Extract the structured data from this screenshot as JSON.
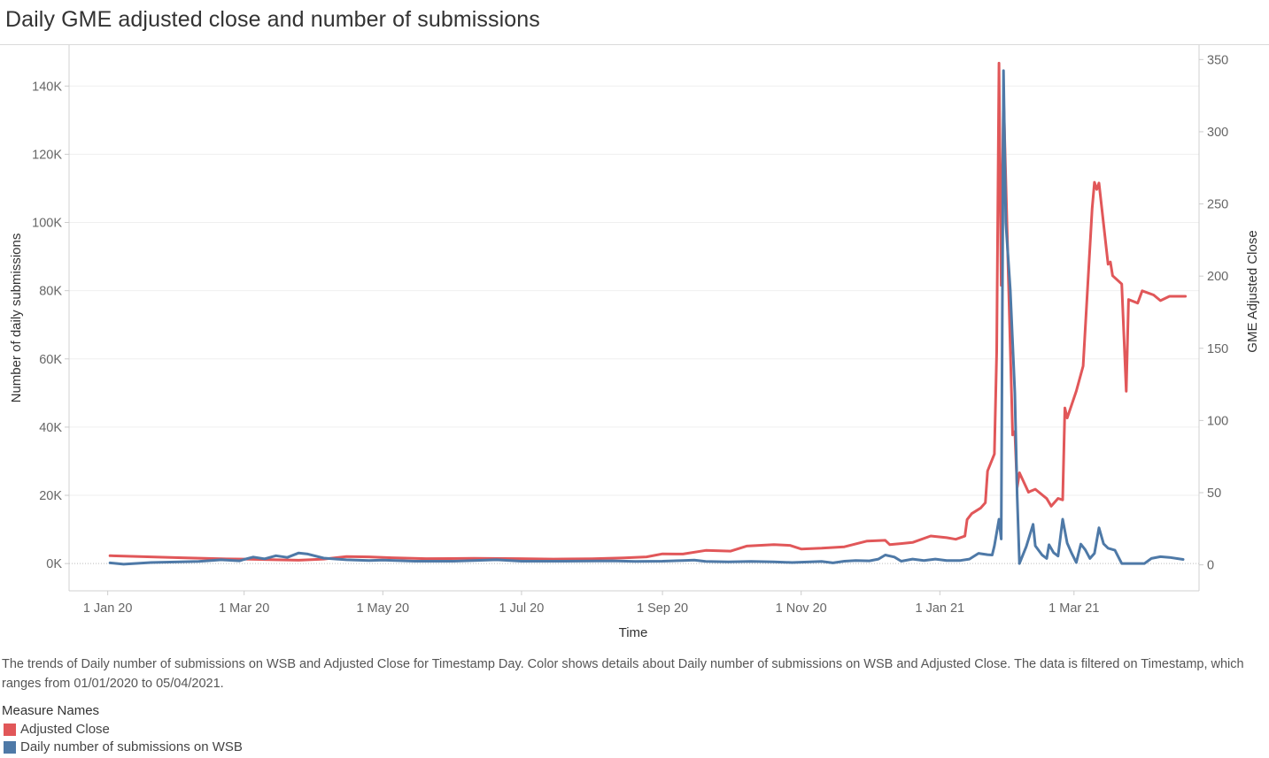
{
  "title": "Daily GME adjusted close and number of submissions",
  "description": "The trends of Daily number of submissions on WSB and Adjusted Close for Timestamp Day.  Color shows details about Daily number of submissions on WSB and Adjusted Close. The data is filtered on Timestamp, which ranges from 01/01/2020 to 05/04/2021.",
  "legend": {
    "title": "Measure Names",
    "items": [
      {
        "label": "Adjusted Close",
        "color": "#e15759"
      },
      {
        "label": "Daily number of submissions on WSB",
        "color": "#4e79a7"
      }
    ]
  },
  "chart_data": {
    "type": "line",
    "title": "Daily GME adjusted close and number of submissions",
    "xlabel": "Time",
    "ylabel_left": "Number of daily submissions",
    "ylabel_right": "GME Adjusted Close",
    "x_ticks": [
      "1 Jan 20",
      "1 Mar 20",
      "1 May 20",
      "1 Jul 20",
      "1 Sep 20",
      "1 Nov 20",
      "1 Jan 21",
      "1 Mar 21"
    ],
    "x_tick_dates": [
      "2020-01-01",
      "2020-03-01",
      "2020-05-01",
      "2020-07-01",
      "2020-09-01",
      "2020-11-01",
      "2021-01-01",
      "2021-03-01"
    ],
    "xlim": [
      "2019-12-15",
      "2021-04-25"
    ],
    "y_left_ticks": [
      "0K",
      "20K",
      "40K",
      "60K",
      "80K",
      "100K",
      "120K",
      "140K"
    ],
    "y_left_lim": [
      -8000,
      152000
    ],
    "y_right_ticks": [
      "0",
      "50",
      "100",
      "150",
      "200",
      "250",
      "300",
      "350"
    ],
    "y_right_lim": [
      -18,
      360
    ],
    "grid": true,
    "series": [
      {
        "name": "Adjusted Close",
        "axis": "right",
        "color": "#e15759",
        "points": [
          [
            "2020-01-02",
            6.3
          ],
          [
            "2020-01-15",
            5.8
          ],
          [
            "2020-02-01",
            5.0
          ],
          [
            "2020-02-20",
            4.2
          ],
          [
            "2020-03-01",
            4.0
          ],
          [
            "2020-03-10",
            3.7
          ],
          [
            "2020-03-25",
            3.2
          ],
          [
            "2020-04-05",
            4.0
          ],
          [
            "2020-04-15",
            5.8
          ],
          [
            "2020-04-25",
            5.5
          ],
          [
            "2020-05-05",
            4.9
          ],
          [
            "2020-05-20",
            4.3
          ],
          [
            "2020-06-10",
            4.5
          ],
          [
            "2020-06-30",
            4.3
          ],
          [
            "2020-07-15",
            4.0
          ],
          [
            "2020-08-01",
            4.2
          ],
          [
            "2020-08-15",
            4.8
          ],
          [
            "2020-08-25",
            5.5
          ],
          [
            "2020-09-01",
            7.6
          ],
          [
            "2020-09-10",
            7.5
          ],
          [
            "2020-09-20",
            10.0
          ],
          [
            "2020-10-01",
            9.5
          ],
          [
            "2020-10-08",
            13.0
          ],
          [
            "2020-10-20",
            14.0
          ],
          [
            "2020-10-27",
            13.5
          ],
          [
            "2020-11-01",
            11.0
          ],
          [
            "2020-11-10",
            11.5
          ],
          [
            "2020-11-20",
            12.5
          ],
          [
            "2020-11-30",
            16.5
          ],
          [
            "2020-12-08",
            17.0
          ],
          [
            "2020-12-10",
            14.0
          ],
          [
            "2020-12-20",
            15.5
          ],
          [
            "2020-12-28",
            20.0
          ],
          [
            "2021-01-04",
            18.8
          ],
          [
            "2021-01-08",
            17.7
          ],
          [
            "2021-01-12",
            19.9
          ],
          [
            "2021-01-13",
            31.4
          ],
          [
            "2021-01-15",
            35.5
          ],
          [
            "2021-01-19",
            39.4
          ],
          [
            "2021-01-21",
            43.0
          ],
          [
            "2021-01-22",
            65.0
          ],
          [
            "2021-01-25",
            76.8
          ],
          [
            "2021-01-26",
            147.9
          ],
          [
            "2021-01-27",
            347.5
          ],
          [
            "2021-01-28",
            193.6
          ],
          [
            "2021-01-29",
            325.0
          ],
          [
            "2021-02-02",
            90.0
          ],
          [
            "2021-02-03",
            92.4
          ],
          [
            "2021-02-04",
            53.5
          ],
          [
            "2021-02-05",
            63.8
          ],
          [
            "2021-02-09",
            50.3
          ],
          [
            "2021-02-10",
            51.1
          ],
          [
            "2021-02-12",
            52.4
          ],
          [
            "2021-02-17",
            45.9
          ],
          [
            "2021-02-19",
            40.6
          ],
          [
            "2021-02-22",
            46.0
          ],
          [
            "2021-02-24",
            44.97
          ],
          [
            "2021-02-25",
            108.7
          ],
          [
            "2021-02-26",
            101.7
          ],
          [
            "2021-03-02",
            120.4
          ],
          [
            "2021-03-05",
            137.7
          ],
          [
            "2021-03-09",
            246.9
          ],
          [
            "2021-03-10",
            265.0
          ],
          [
            "2021-03-11",
            260.0
          ],
          [
            "2021-03-12",
            264.5
          ],
          [
            "2021-03-16",
            208.2
          ],
          [
            "2021-03-17",
            209.8
          ],
          [
            "2021-03-18",
            200.3
          ],
          [
            "2021-03-22",
            194.5
          ],
          [
            "2021-03-24",
            120.3
          ],
          [
            "2021-03-25",
            183.8
          ],
          [
            "2021-03-29",
            181.3
          ],
          [
            "2021-03-31",
            189.8
          ],
          [
            "2021-04-05",
            186.9
          ],
          [
            "2021-04-08",
            183.0
          ],
          [
            "2021-04-12",
            186.0
          ],
          [
            "2021-04-19",
            186.0
          ]
        ]
      },
      {
        "name": "Daily number of submissions on WSB",
        "axis": "left",
        "color": "#4e79a7",
        "points": [
          [
            "2020-01-02",
            200
          ],
          [
            "2020-01-08",
            -200
          ],
          [
            "2020-01-20",
            300
          ],
          [
            "2020-02-10",
            600
          ],
          [
            "2020-02-20",
            1100
          ],
          [
            "2020-02-28",
            800
          ],
          [
            "2020-03-01",
            1200
          ],
          [
            "2020-03-05",
            1900
          ],
          [
            "2020-03-10",
            1400
          ],
          [
            "2020-03-15",
            2300
          ],
          [
            "2020-03-20",
            1800
          ],
          [
            "2020-03-25",
            3100
          ],
          [
            "2020-03-29",
            2800
          ],
          [
            "2020-04-05",
            1600
          ],
          [
            "2020-04-15",
            1100
          ],
          [
            "2020-04-25",
            900
          ],
          [
            "2020-05-01",
            1000
          ],
          [
            "2020-05-15",
            700
          ],
          [
            "2020-06-01",
            700
          ],
          [
            "2020-06-10",
            900
          ],
          [
            "2020-06-20",
            1100
          ],
          [
            "2020-07-01",
            700
          ],
          [
            "2020-07-20",
            700
          ],
          [
            "2020-08-10",
            800
          ],
          [
            "2020-08-20",
            600
          ],
          [
            "2020-09-01",
            700
          ],
          [
            "2020-09-10",
            900
          ],
          [
            "2020-09-15",
            1000
          ],
          [
            "2020-09-20",
            600
          ],
          [
            "2020-09-30",
            500
          ],
          [
            "2020-10-10",
            600
          ],
          [
            "2020-10-20",
            500
          ],
          [
            "2020-10-28",
            300
          ],
          [
            "2020-11-01",
            400
          ],
          [
            "2020-11-10",
            600
          ],
          [
            "2020-11-15",
            200
          ],
          [
            "2020-11-20",
            700
          ],
          [
            "2020-11-25",
            900
          ],
          [
            "2020-12-01",
            800
          ],
          [
            "2020-12-05",
            1300
          ],
          [
            "2020-12-08",
            2500
          ],
          [
            "2020-12-12",
            1900
          ],
          [
            "2020-12-15",
            700
          ],
          [
            "2020-12-20",
            1300
          ],
          [
            "2020-12-25",
            900
          ],
          [
            "2020-12-30",
            1300
          ],
          [
            "2021-01-04",
            900
          ],
          [
            "2021-01-10",
            900
          ],
          [
            "2021-01-14",
            1300
          ],
          [
            "2021-01-18",
            3000
          ],
          [
            "2021-01-22",
            2600
          ],
          [
            "2021-01-24",
            2500
          ],
          [
            "2021-01-25",
            5200
          ],
          [
            "2021-01-26",
            9100
          ],
          [
            "2021-01-27",
            13000
          ],
          [
            "2021-01-28",
            7200
          ],
          [
            "2021-01-29",
            144500
          ],
          [
            "2021-01-30",
            100000
          ],
          [
            "2021-02-01",
            80000
          ],
          [
            "2021-02-03",
            50000
          ],
          [
            "2021-02-04",
            20000
          ],
          [
            "2021-02-05",
            0
          ],
          [
            "2021-02-08",
            5000
          ],
          [
            "2021-02-11",
            11500
          ],
          [
            "2021-02-12",
            5200
          ],
          [
            "2021-02-15",
            2500
          ],
          [
            "2021-02-17",
            1500
          ],
          [
            "2021-02-18",
            5500
          ],
          [
            "2021-02-20",
            3200
          ],
          [
            "2021-02-22",
            2200
          ],
          [
            "2021-02-24",
            13000
          ],
          [
            "2021-02-26",
            6000
          ],
          [
            "2021-02-28",
            3000
          ],
          [
            "2021-03-02",
            300
          ],
          [
            "2021-03-04",
            5700
          ],
          [
            "2021-03-06",
            4000
          ],
          [
            "2021-03-08",
            1500
          ],
          [
            "2021-03-10",
            3000
          ],
          [
            "2021-03-12",
            10500
          ],
          [
            "2021-03-14",
            5800
          ],
          [
            "2021-03-16",
            4500
          ],
          [
            "2021-03-19",
            3900
          ],
          [
            "2021-03-22",
            0
          ],
          [
            "2021-03-27",
            0
          ],
          [
            "2021-04-01",
            0
          ],
          [
            "2021-04-04",
            1500
          ],
          [
            "2021-04-08",
            2000
          ],
          [
            "2021-04-12",
            1800
          ],
          [
            "2021-04-18",
            1200
          ]
        ]
      }
    ]
  }
}
